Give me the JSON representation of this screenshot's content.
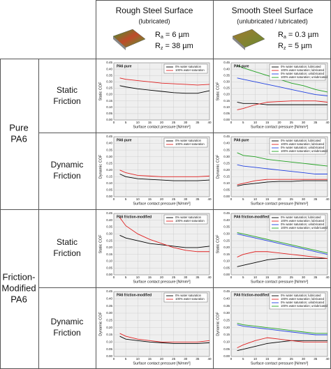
{
  "header": {
    "columns": [
      {
        "title": "Rough Steel Surface",
        "subtitle": "(lubricated)",
        "ra": {
          "symbol": "R",
          "sub": "a",
          "value": " = 6 µm"
        },
        "rz": {
          "symbol": "R",
          "sub": "z",
          "value": " = 38 µm"
        }
      },
      {
        "title": "Smooth Steel Surface",
        "subtitle": "(unlubricated / lubricated)",
        "ra": {
          "symbol": "R",
          "sub": "a",
          "value": " = 0.3 µm"
        },
        "rz": {
          "symbol": "R",
          "sub": "z",
          "value": " = 5 µm"
        }
      }
    ]
  },
  "row_groups": [
    {
      "label": [
        "Pure",
        "PA6"
      ]
    },
    {
      "label": [
        "Friction-",
        "Modified",
        "PA6"
      ]
    }
  ],
  "friction_types": [
    {
      "label": [
        "Static",
        "Friction"
      ]
    },
    {
      "label": [
        "Dynamic",
        "Friction"
      ]
    },
    {
      "label": [
        "Static",
        "Friction"
      ]
    },
    {
      "label": [
        "Dynamic",
        "Friction"
      ]
    }
  ],
  "chart_data": [
    {
      "type": "line",
      "title": "PA6 pure",
      "xlabel": "Surface contact pressure [N/mm²]",
      "ylabel": "Static COF",
      "x": [
        2.5,
        5,
        10,
        15,
        20,
        25,
        30,
        35,
        40
      ],
      "xlim": [
        0,
        40
      ],
      "ylim": [
        0,
        0.45
      ],
      "xticks": [
        0,
        5,
        10,
        15,
        20,
        25,
        30,
        35,
        40
      ],
      "yticks": [
        {
          "value": 0,
          "label": "0.00"
        },
        {
          "value": 0.05,
          "label": "0.05"
        },
        {
          "value": 0.1,
          "label": "0.10"
        },
        {
          "value": 0.15,
          "label": "0.15"
        },
        {
          "value": 0.2,
          "label": "0.20"
        },
        {
          "value": 0.25,
          "label": "0.25"
        },
        {
          "value": 0.3,
          "label": "0.30"
        },
        {
          "value": 0.35,
          "label": "0.35"
        },
        {
          "value": 0.4,
          "label": "0.40"
        },
        {
          "value": 0.45,
          "label": "0.45"
        }
      ],
      "grid": true,
      "legend": "upper right",
      "series": [
        {
          "name": "0% water saturation",
          "color": "#000000",
          "values": [
            0.27,
            0.26,
            0.245,
            0.235,
            0.225,
            0.215,
            0.21,
            0.21,
            0.23
          ]
        },
        {
          "name": "100% water saturation",
          "color": "#e02020",
          "values": [
            0.33,
            0.32,
            0.31,
            0.3,
            0.29,
            0.285,
            0.28,
            0.275,
            0.28
          ]
        }
      ]
    },
    {
      "type": "line",
      "title": "PA6 pure",
      "xlabel": "Surface contact pressure [N/mm²]",
      "ylabel": "Static COF",
      "x": [
        2.5,
        5,
        10,
        15,
        20,
        25,
        30,
        35,
        40
      ],
      "xlim": [
        0,
        40
      ],
      "ylim": [
        0,
        0.45
      ],
      "xticks": [
        0,
        5,
        10,
        15,
        20,
        25,
        30,
        35,
        40
      ],
      "yticks": [
        {
          "value": 0,
          "label": "0.00"
        },
        {
          "value": 0.05,
          "label": "0.05"
        },
        {
          "value": 0.1,
          "label": "0.10"
        },
        {
          "value": 0.15,
          "label": "0.15"
        },
        {
          "value": 0.2,
          "label": "0.20"
        },
        {
          "value": 0.25,
          "label": "0.25"
        },
        {
          "value": 0.3,
          "label": "0.30"
        },
        {
          "value": 0.35,
          "label": "0.35"
        },
        {
          "value": 0.4,
          "label": "0.40"
        },
        {
          "value": 0.45,
          "label": "0.45"
        }
      ],
      "grid": true,
      "legend": "upper right",
      "series": [
        {
          "name": "0% water saturation; lubricated",
          "color": "#000000",
          "values": [
            0.14,
            0.13,
            0.13,
            0.12,
            0.12,
            0.12,
            0.12,
            0.12,
            0.12
          ]
        },
        {
          "name": "100% water saturation; lubricated",
          "color": "#e02020",
          "values": [
            0.08,
            0.09,
            0.12,
            0.14,
            0.145,
            0.15,
            0.15,
            0.15,
            0.14
          ]
        },
        {
          "name": "0% water saturation; unlubricated",
          "color": "#2040e0",
          "values": [
            0.33,
            0.32,
            0.3,
            0.28,
            0.26,
            0.24,
            0.22,
            0.2,
            0.19
          ]
        },
        {
          "name": "100% water saturation; unlubricated",
          "color": "#20a020",
          "values": [
            0.43,
            0.41,
            0.38,
            0.35,
            0.32,
            0.29,
            0.27,
            0.24,
            0.22
          ]
        }
      ]
    },
    {
      "type": "line",
      "title": "PA6 pure",
      "xlabel": "Surface contact pressure [N/mm²]",
      "ylabel": "Dynamic COF",
      "x": [
        2.5,
        5,
        10,
        15,
        20,
        25,
        30,
        35,
        40
      ],
      "xlim": [
        0,
        40
      ],
      "ylim": [
        0,
        0.45
      ],
      "xticks": [
        0,
        5,
        10,
        15,
        20,
        25,
        30,
        35,
        40
      ],
      "yticks": [
        {
          "value": 0,
          "label": "0.00"
        },
        {
          "value": 0.05,
          "label": "0.05"
        },
        {
          "value": 0.1,
          "label": "0.10"
        },
        {
          "value": 0.15,
          "label": "0.15"
        },
        {
          "value": 0.2,
          "label": "0.20"
        },
        {
          "value": 0.25,
          "label": "0.25"
        },
        {
          "value": 0.3,
          "label": "0.30"
        },
        {
          "value": 0.35,
          "label": "0.35"
        },
        {
          "value": 0.4,
          "label": "0.40"
        },
        {
          "value": 0.45,
          "label": "0.45"
        }
      ],
      "grid": true,
      "legend": "upper right",
      "series": [
        {
          "name": "0% water saturation",
          "color": "#000000",
          "values": [
            0.17,
            0.15,
            0.135,
            0.13,
            0.125,
            0.12,
            0.12,
            0.12,
            0.125
          ]
        },
        {
          "name": "100% water saturation",
          "color": "#e02020",
          "values": [
            0.2,
            0.18,
            0.16,
            0.155,
            0.15,
            0.15,
            0.15,
            0.15,
            0.155
          ]
        }
      ]
    },
    {
      "type": "line",
      "title": "PA6 pure",
      "xlabel": "Surface contact pressure [N/mm²]",
      "ylabel": "Dynamic COF",
      "x": [
        2.5,
        5,
        10,
        15,
        20,
        25,
        30,
        35,
        40
      ],
      "xlim": [
        0,
        40
      ],
      "ylim": [
        0,
        0.45
      ],
      "xticks": [
        0,
        5,
        10,
        15,
        20,
        25,
        30,
        35,
        40
      ],
      "yticks": [
        {
          "value": 0,
          "label": "0.00"
        },
        {
          "value": 0.05,
          "label": "0.05"
        },
        {
          "value": 0.1,
          "label": "0.10"
        },
        {
          "value": 0.15,
          "label": "0.15"
        },
        {
          "value": 0.2,
          "label": "0.20"
        },
        {
          "value": 0.25,
          "label": "0.25"
        },
        {
          "value": 0.3,
          "label": "0.30"
        },
        {
          "value": 0.35,
          "label": "0.35"
        },
        {
          "value": 0.4,
          "label": "0.40"
        },
        {
          "value": 0.45,
          "label": "0.45"
        }
      ],
      "grid": true,
      "legend": "upper right",
      "series": [
        {
          "name": "0% water saturation; lubricated",
          "color": "#000000",
          "values": [
            0.08,
            0.09,
            0.1,
            0.11,
            0.115,
            0.115,
            0.12,
            0.12,
            0.12
          ]
        },
        {
          "name": "100% water saturation; lubricated",
          "color": "#e02020",
          "values": [
            0.09,
            0.1,
            0.12,
            0.13,
            0.13,
            0.13,
            0.13,
            0.13,
            0.13
          ]
        },
        {
          "name": "0% water saturation; unlubricated",
          "color": "#2040e0",
          "values": [
            0.24,
            0.23,
            0.22,
            0.21,
            0.2,
            0.19,
            0.18,
            0.17,
            0.17
          ]
        },
        {
          "name": "100% water saturation; unlubricated",
          "color": "#20a020",
          "values": [
            0.33,
            0.31,
            0.3,
            0.28,
            0.27,
            0.26,
            0.25,
            0.24,
            0.23
          ]
        }
      ]
    },
    {
      "type": "line",
      "title": "PA6 friction-modified",
      "xlabel": "Surface contact pressure [N/mm²]",
      "ylabel": "Static COF",
      "x": [
        2.5,
        5,
        10,
        15,
        20,
        25,
        30,
        35,
        40
      ],
      "xlim": [
        0,
        40
      ],
      "ylim": [
        0,
        0.45
      ],
      "xticks": [
        0,
        5,
        10,
        15,
        20,
        25,
        30,
        35,
        40
      ],
      "yticks": [
        {
          "value": 0,
          "label": "0.00"
        },
        {
          "value": 0.05,
          "label": "0.05"
        },
        {
          "value": 0.1,
          "label": "0.10"
        },
        {
          "value": 0.15,
          "label": "0.15"
        },
        {
          "value": 0.2,
          "label": "0.20"
        },
        {
          "value": 0.25,
          "label": "0.25"
        },
        {
          "value": 0.3,
          "label": "0.30"
        },
        {
          "value": 0.35,
          "label": "0.35"
        },
        {
          "value": 0.4,
          "label": "0.40"
        },
        {
          "value": 0.45,
          "label": "0.45"
        }
      ],
      "grid": true,
      "legend": "upper right",
      "series": [
        {
          "name": "0% water saturation",
          "color": "#000000",
          "values": [
            0.29,
            0.27,
            0.25,
            0.23,
            0.22,
            0.21,
            0.2,
            0.2,
            0.21
          ]
        },
        {
          "name": "100% water saturation",
          "color": "#e02020",
          "values": [
            0.42,
            0.36,
            0.3,
            0.26,
            0.23,
            0.2,
            0.18,
            0.17,
            0.17
          ]
        }
      ]
    },
    {
      "type": "line",
      "title": "PA6 friction-modified",
      "xlabel": "Surface contact pressure [N/mm²]",
      "ylabel": "Static COF",
      "x": [
        2.5,
        5,
        10,
        15,
        20,
        25,
        30,
        35,
        40
      ],
      "xlim": [
        0,
        40
      ],
      "ylim": [
        0,
        0.45
      ],
      "xticks": [
        0,
        5,
        10,
        15,
        20,
        25,
        30,
        35,
        40
      ],
      "yticks": [
        {
          "value": 0,
          "label": "0.00"
        },
        {
          "value": 0.05,
          "label": "0.05"
        },
        {
          "value": 0.1,
          "label": "0.10"
        },
        {
          "value": 0.15,
          "label": "0.15"
        },
        {
          "value": 0.2,
          "label": "0.20"
        },
        {
          "value": 0.25,
          "label": "0.25"
        },
        {
          "value": 0.3,
          "label": "0.30"
        },
        {
          "value": 0.35,
          "label": "0.35"
        },
        {
          "value": 0.4,
          "label": "0.40"
        },
        {
          "value": 0.45,
          "label": "0.45"
        }
      ],
      "grid": true,
      "legend": "upper right",
      "series": [
        {
          "name": "0% water saturation; lubricated",
          "color": "#000000",
          "values": [
            0.06,
            0.07,
            0.09,
            0.11,
            0.12,
            0.12,
            0.12,
            0.12,
            0.12
          ]
        },
        {
          "name": "100% water saturation; lubricated",
          "color": "#e02020",
          "values": [
            0.13,
            0.15,
            0.17,
            0.17,
            0.16,
            0.15,
            0.14,
            0.13,
            0.12
          ]
        },
        {
          "name": "0% water saturation; unlubricated",
          "color": "#2040e0",
          "values": [
            0.3,
            0.29,
            0.27,
            0.25,
            0.23,
            0.21,
            0.19,
            0.17,
            0.15
          ]
        },
        {
          "name": "100% water saturation; unlubricated",
          "color": "#20a020",
          "values": [
            0.31,
            0.3,
            0.28,
            0.26,
            0.24,
            0.22,
            0.2,
            0.18,
            0.16
          ]
        }
      ]
    },
    {
      "type": "line",
      "title": "PA6 friction-modified",
      "xlabel": "Surface contact pressure [N/mm²]",
      "ylabel": "Dynamic COF",
      "x": [
        2.5,
        5,
        10,
        15,
        20,
        25,
        30,
        35,
        40
      ],
      "xlim": [
        0,
        40
      ],
      "ylim": [
        0,
        0.45
      ],
      "xticks": [
        0,
        5,
        10,
        15,
        20,
        25,
        30,
        35,
        40
      ],
      "yticks": [
        {
          "value": 0,
          "label": "0.00"
        },
        {
          "value": 0.05,
          "label": "0.05"
        },
        {
          "value": 0.1,
          "label": "0.10"
        },
        {
          "value": 0.15,
          "label": "0.15"
        },
        {
          "value": 0.2,
          "label": "0.20"
        },
        {
          "value": 0.25,
          "label": "0.25"
        },
        {
          "value": 0.3,
          "label": "0.30"
        },
        {
          "value": 0.35,
          "label": "0.35"
        },
        {
          "value": 0.4,
          "label": "0.40"
        },
        {
          "value": 0.45,
          "label": "0.45"
        }
      ],
      "grid": true,
      "legend": "upper right",
      "series": [
        {
          "name": "0% water saturation",
          "color": "#000000",
          "values": [
            0.14,
            0.12,
            0.11,
            0.1,
            0.095,
            0.09,
            0.09,
            0.09,
            0.095
          ]
        },
        {
          "name": "100% water saturation",
          "color": "#e02020",
          "values": [
            0.16,
            0.14,
            0.12,
            0.11,
            0.1,
            0.1,
            0.1,
            0.1,
            0.11
          ]
        }
      ]
    },
    {
      "type": "line",
      "title": "PA6 friction-modified",
      "xlabel": "Surface contact pressure [N/mm²]",
      "ylabel": "Dynamic COF",
      "x": [
        2.5,
        5,
        10,
        15,
        20,
        25,
        30,
        35,
        40
      ],
      "xlim": [
        0,
        40
      ],
      "ylim": [
        0,
        0.45
      ],
      "xticks": [
        0,
        5,
        10,
        15,
        20,
        25,
        30,
        35,
        40
      ],
      "yticks": [
        {
          "value": 0,
          "label": "0.00"
        },
        {
          "value": 0.05,
          "label": "0.05"
        },
        {
          "value": 0.1,
          "label": "0.10"
        },
        {
          "value": 0.15,
          "label": "0.15"
        },
        {
          "value": 0.2,
          "label": "0.20"
        },
        {
          "value": 0.25,
          "label": "0.25"
        },
        {
          "value": 0.3,
          "label": "0.30"
        },
        {
          "value": 0.35,
          "label": "0.35"
        },
        {
          "value": 0.4,
          "label": "0.40"
        },
        {
          "value": 0.45,
          "label": "0.45"
        }
      ],
      "grid": true,
      "legend": "upper right",
      "series": [
        {
          "name": "0% water saturation; lubricated",
          "color": "#000000",
          "values": [
            0.04,
            0.05,
            0.07,
            0.09,
            0.1,
            0.11,
            0.11,
            0.11,
            0.11
          ]
        },
        {
          "name": "100% water saturation; lubricated",
          "color": "#e02020",
          "values": [
            0.06,
            0.08,
            0.11,
            0.13,
            0.12,
            0.11,
            0.1,
            0.1,
            0.1
          ]
        },
        {
          "name": "0% water saturation; unlubricated",
          "color": "#2040e0",
          "values": [
            0.22,
            0.21,
            0.2,
            0.19,
            0.18,
            0.17,
            0.16,
            0.15,
            0.15
          ]
        },
        {
          "name": "100% water saturation; unlubricated",
          "color": "#20a020",
          "values": [
            0.23,
            0.22,
            0.21,
            0.2,
            0.19,
            0.18,
            0.17,
            0.16,
            0.16
          ]
        }
      ]
    }
  ]
}
